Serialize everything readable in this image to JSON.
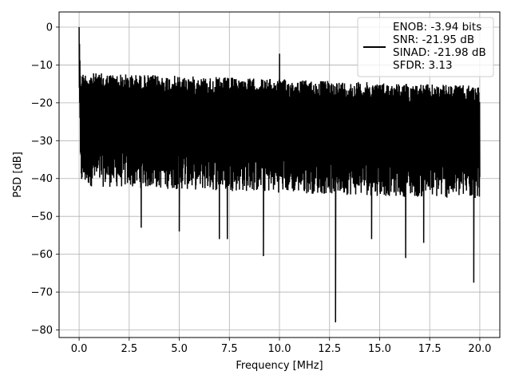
{
  "chart_data": {
    "type": "line",
    "title": "",
    "xlabel": "Frequency [MHz]",
    "ylabel": "PSD [dB]",
    "xlim": [
      -1.0,
      21.0
    ],
    "ylim": [
      -82.0,
      4.0
    ],
    "xticks": [
      0.0,
      2.5,
      5.0,
      7.5,
      10.0,
      12.5,
      15.0,
      17.5,
      20.0
    ],
    "xtick_labels": [
      "0.0",
      "2.5",
      "5.0",
      "7.5",
      "10.0",
      "12.5",
      "15.0",
      "17.5",
      "20.0"
    ],
    "yticks": [
      0,
      -10,
      -20,
      -30,
      -40,
      -50,
      -60,
      -70,
      -80
    ],
    "ytick_labels": [
      "0",
      "−10",
      "−20",
      "−30",
      "−40",
      "−50",
      "−60",
      "−70",
      "−80"
    ],
    "grid": true,
    "legend_position": "top-right",
    "line_color": "#000000",
    "legend": {
      "lines": [
        "ENOB: -3.94 bits",
        "SNR: -21.95 dB",
        "SINAD: -21.98 dB",
        "SFDR: 3.13"
      ]
    },
    "series": [
      {
        "x_range": [
          0.0,
          20.0
        ],
        "points": 2048,
        "noise_floor_db": [
          -12,
          -40
        ],
        "peak": {
          "x": 0.0,
          "y": 0.0
        },
        "spur": {
          "x": 10.0,
          "y": -7.0
        },
        "dips": [
          {
            "x": 3.1,
            "y": -53
          },
          {
            "x": 5.0,
            "y": -54
          },
          {
            "x": 7.0,
            "y": -56
          },
          {
            "x": 7.4,
            "y": -56
          },
          {
            "x": 9.2,
            "y": -60.5
          },
          {
            "x": 12.8,
            "y": -78
          },
          {
            "x": 14.6,
            "y": -56
          },
          {
            "x": 16.3,
            "y": -61
          },
          {
            "x": 17.2,
            "y": -57
          },
          {
            "x": 19.7,
            "y": -67.5
          }
        ]
      }
    ]
  }
}
